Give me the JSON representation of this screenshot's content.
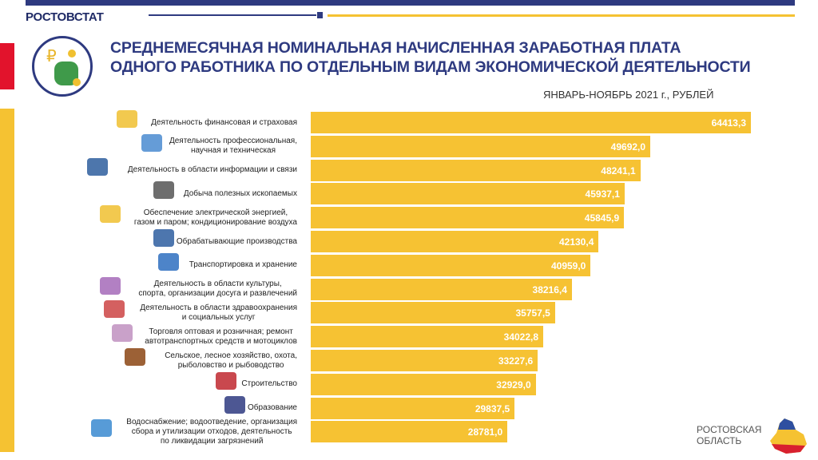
{
  "header": {
    "brand": "РОСТОВСТАТ",
    "region": [
      "РОСТОВСКАЯ",
      "ОБЛАСТЬ"
    ]
  },
  "chart_data": {
    "type": "bar",
    "orientation": "horizontal",
    "title": [
      "СРЕДНЕМЕСЯЧНАЯ НОМИНАЛЬНАЯ  НАЧИСЛЕННАЯ ЗАРАБОТНАЯ ПЛАТА",
      "ОДНОГО РАБОТНИКА  ПО ОТДЕЛЬНЫМ ВИДАМ ЭКОНОМИЧЕСКОЙ ДЕЯТЕЛЬНОСТИ"
    ],
    "subtitle": "ЯНВАРЬ-НОЯБРЬ 2021 г., РУБЛЕЙ",
    "categories": [
      [
        "Деятельность  финансовая  и страховая"
      ],
      [
        "Деятельность  профессиональная,",
        "научная и техническая"
      ],
      [
        "Деятельность  в области  информации  и связи"
      ],
      [
        "Добыча  полезных  ископаемых"
      ],
      [
        "Обеспечение  электрической  энергией,",
        "газом и паром; кондиционирование  воздуха"
      ],
      [
        "Обрабатывающие  производства"
      ],
      [
        "Транспортировка  и хранение"
      ],
      [
        "Деятельность  в области  культуры,",
        "спорта, организации  досуга и развлечений"
      ],
      [
        "Деятельность  в области  здравоохранения",
        "и социальных  услуг"
      ],
      [
        "Торговля  оптовая и розничная;  ремонт",
        "автотранспортных  средств и мотоциклов"
      ],
      [
        "Сельское, лесное  хозяйство, охота,",
        "рыболовство  и рыбоводство"
      ],
      [
        "Строительство"
      ],
      [
        "Образование"
      ],
      [
        "Водоснабжение;  водоотведение,  организация",
        "сбора и утилизации  отходов, деятельность",
        "по ликвидации  загрязнений"
      ]
    ],
    "values": [
      64413.3,
      49692.0,
      48241.1,
      45937.1,
      45845.9,
      42130.4,
      40959.0,
      38216.4,
      35757.5,
      34022.8,
      33227.6,
      32929.0,
      29837.5,
      28781.0
    ],
    "labels": [
      "64413,3",
      "49692,0",
      "48241,1",
      "45937,1",
      "45845,9",
      "42130,4",
      "40959,0",
      "38216,4",
      "35757,5",
      "34022,8",
      "33227,6",
      "32929,0",
      "29837,5",
      "28781,0"
    ],
    "icons": [
      "coins-icon",
      "microscope-icon",
      "phone-mail-icon",
      "shovel-diamond-icon",
      "lightbulb-icon",
      "hammer-gear-icon",
      "bus-icon",
      "tickets-icon",
      "stethoscope-icon",
      "car-scissors-icon",
      "rifle-fishing-icon",
      "bricks-icon",
      "graduation-cap-icon",
      "pipe-icon"
    ],
    "bar_color": "#f6c233"
  }
}
